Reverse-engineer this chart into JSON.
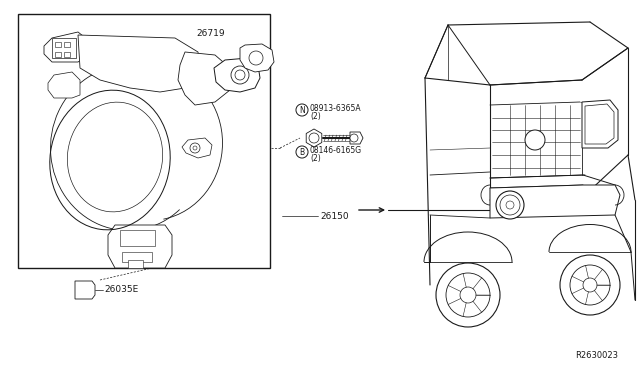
{
  "bg_color": "#ffffff",
  "line_color": "#1a1a1a",
  "fig_width": 6.4,
  "fig_height": 3.72,
  "ref_number": "R2630023",
  "font_size": 6.5,
  "font_size_small": 5.5,
  "labels": {
    "part_26719": "26719",
    "part_N": "08913-6365A",
    "part_N2": "(2)",
    "part_B": "08146-6165G",
    "part_B2": "(2)",
    "part_26150": "26150",
    "part_26035E": "26035E"
  }
}
